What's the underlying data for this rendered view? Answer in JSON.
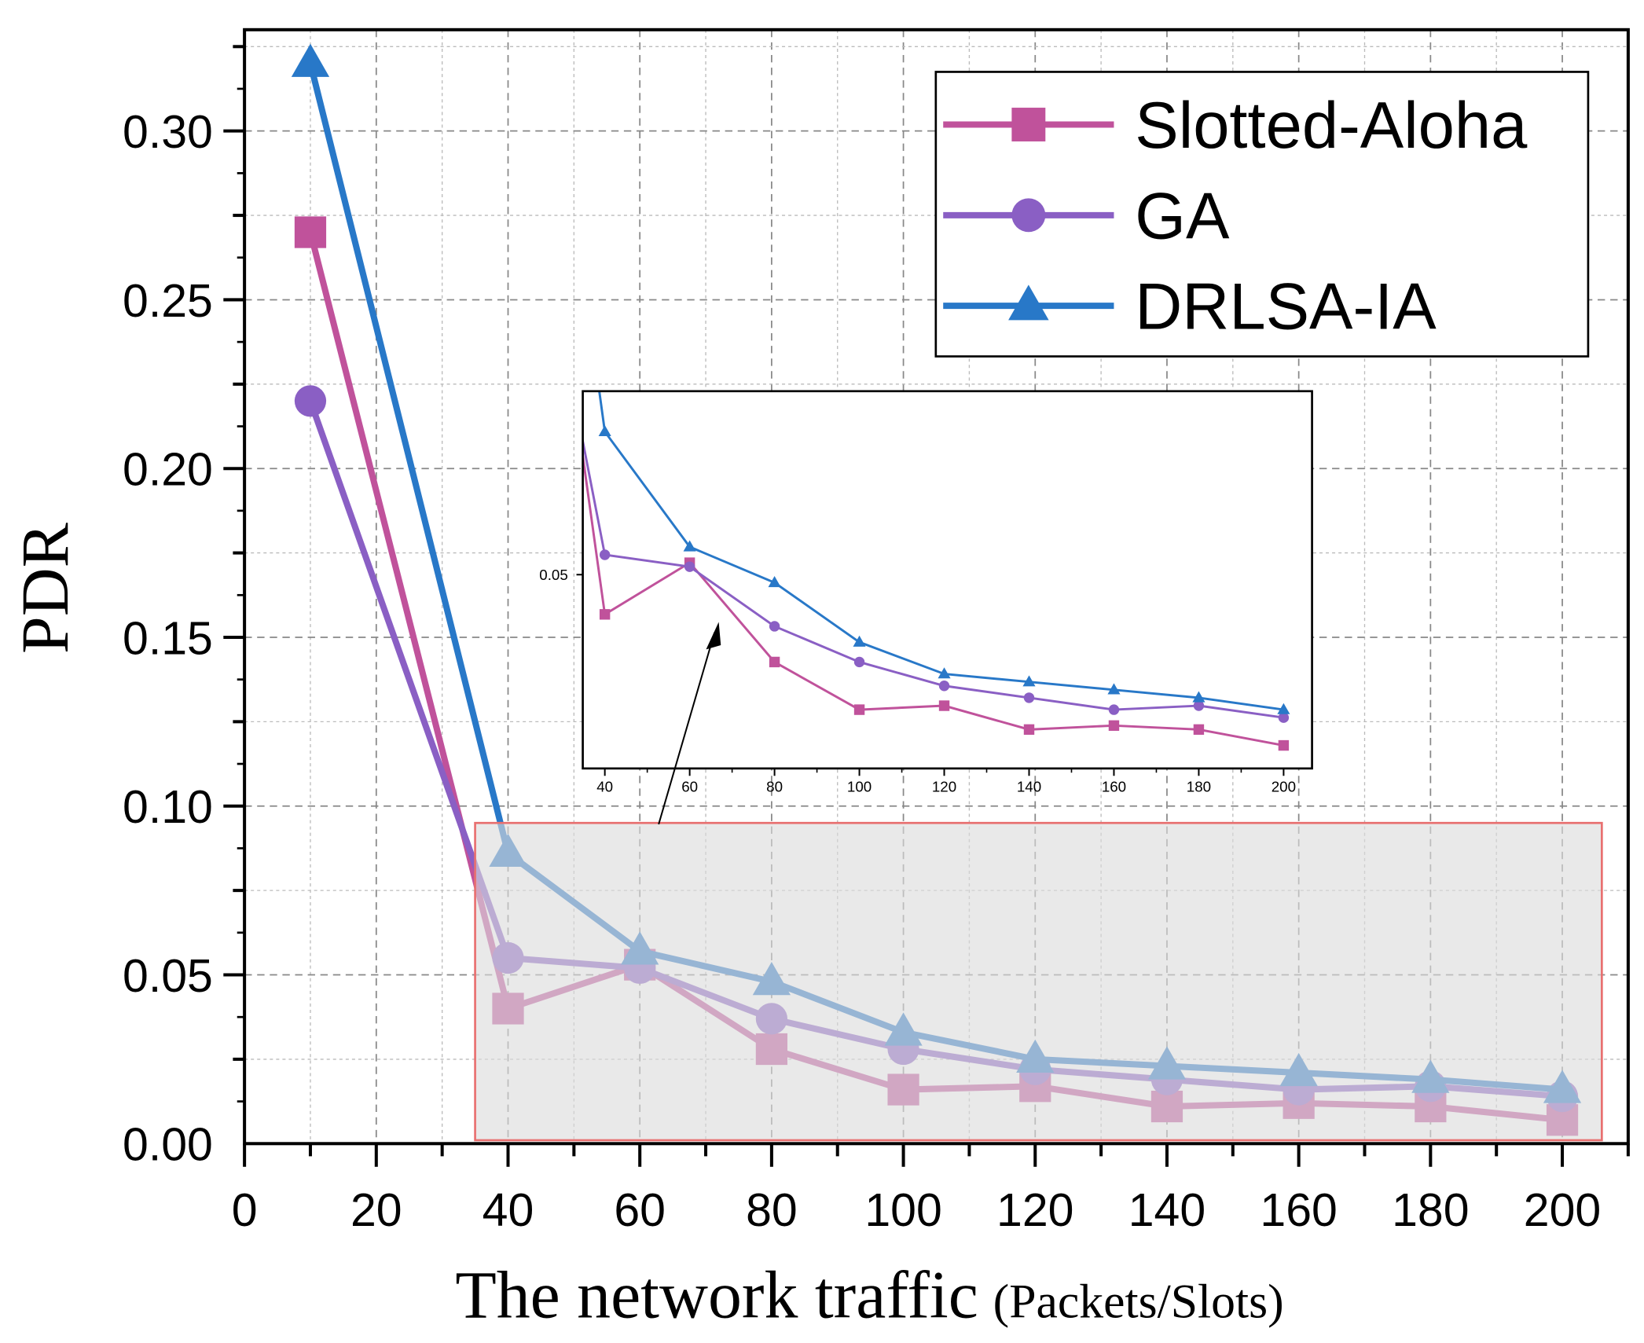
{
  "chart_data": {
    "type": "line",
    "xlabel": "The network traffic",
    "xlabel_unit": "(Packets/Slots)",
    "ylabel": "PDR",
    "xlim": [
      0,
      210
    ],
    "ylim": [
      0,
      0.33
    ],
    "xticks": [
      "0",
      "20",
      "40",
      "60",
      "80",
      "100",
      "120",
      "140",
      "160",
      "180",
      "200"
    ],
    "yticks": [
      "0.00",
      "0.05",
      "0.10",
      "0.15",
      "0.20",
      "0.25",
      "0.30"
    ],
    "grid": true,
    "legend_position": "top-right",
    "x": [
      10,
      40,
      60,
      80,
      100,
      120,
      140,
      160,
      180,
      200
    ],
    "series": [
      {
        "name": "Slotted-Aloha",
        "color": "#c0529b",
        "marker": "square",
        "values": [
          0.27,
          0.04,
          0.053,
          0.028,
          0.016,
          0.017,
          0.011,
          0.012,
          0.011,
          0.007
        ]
      },
      {
        "name": "GA",
        "color": "#8a5fc4",
        "marker": "circle",
        "values": [
          0.22,
          0.055,
          0.052,
          0.037,
          0.028,
          0.022,
          0.019,
          0.016,
          0.017,
          0.014
        ]
      },
      {
        "name": "DRLSA-IA",
        "color": "#2878c8",
        "marker": "triangle",
        "values": [
          0.32,
          0.086,
          0.057,
          0.048,
          0.033,
          0.025,
          0.023,
          0.021,
          0.019,
          0.016
        ]
      }
    ],
    "highlight_region": {
      "x": [
        35,
        206
      ],
      "y": [
        0.001,
        0.095
      ],
      "color": "#e87070"
    },
    "inset": {
      "xlim": [
        34.8,
        206.7
      ],
      "ylim": [
        0.0012,
        0.0962
      ],
      "xticks": [
        "40",
        "60",
        "80",
        "100",
        "120",
        "140",
        "160",
        "180",
        "200"
      ],
      "yticks": [
        "0.05"
      ]
    }
  }
}
